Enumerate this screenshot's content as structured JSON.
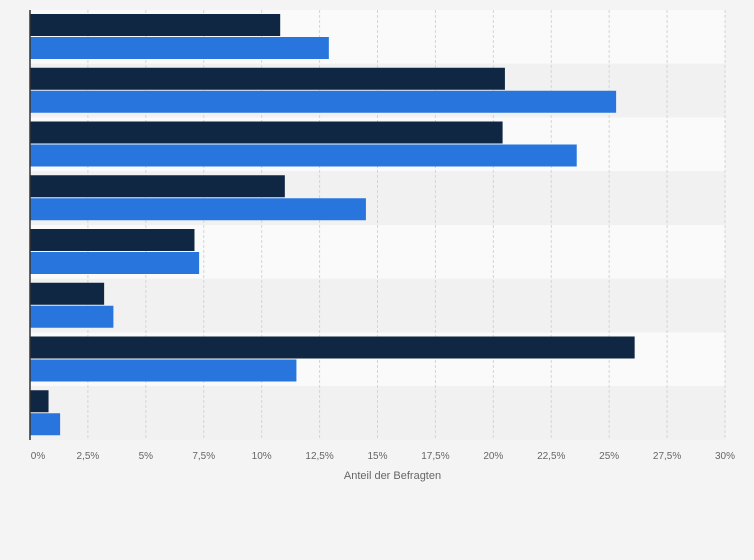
{
  "chart_data": {
    "type": "bar",
    "orientation": "horizontal",
    "categories": [
      "",
      "",
      "",
      "",
      "",
      "",
      "",
      ""
    ],
    "series": [
      {
        "color": "#0f2742",
        "values": [
          10.8,
          20.5,
          20.4,
          11.0,
          7.1,
          3.2,
          26.1,
          0.8
        ]
      },
      {
        "color": "#2876dd",
        "values": [
          12.9,
          25.3,
          23.6,
          14.5,
          7.3,
          3.6,
          11.5,
          1.3
        ]
      }
    ],
    "xlabel": "Anteil der Befragten",
    "ylabel": "",
    "xlim": [
      0,
      30
    ],
    "xticks": [
      0,
      2.5,
      5,
      7.5,
      10,
      12.5,
      15,
      17.5,
      20,
      22.5,
      25,
      27.5,
      30
    ],
    "xtick_labels": [
      "0%",
      "2,5%",
      "5%",
      "7,5%",
      "10%",
      "12,5%",
      "15%",
      "17,5%",
      "20%",
      "22,5%",
      "25%",
      "27,5%",
      "30%"
    ],
    "grid": "vertical dashed",
    "legend": "none"
  },
  "colors": {
    "page_background": "#f4f4f4",
    "plot_band_light": "#fafafa",
    "plot_band_dark": "#f1f1f1",
    "grid": "#d5d5d5",
    "axis": "#333333",
    "tick_text": "#666666"
  }
}
